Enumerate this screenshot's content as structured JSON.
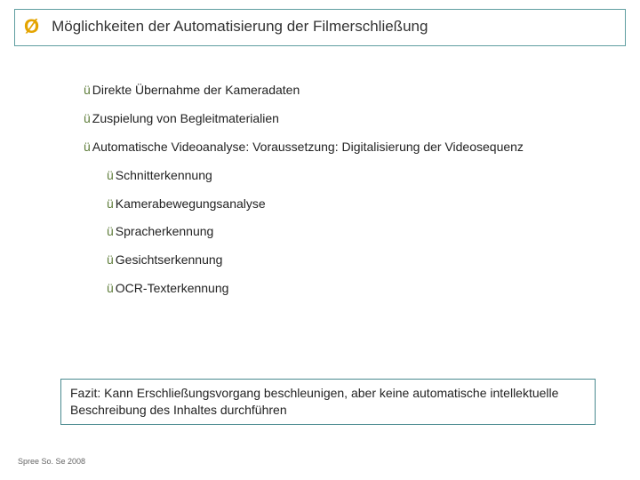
{
  "colors": {
    "border": "#5f9ea0",
    "chevron": "#e4a400",
    "check": "#5e7c3a",
    "text": "#222222",
    "footer": "#666666",
    "background": "#ffffff"
  },
  "header": {
    "title": "Möglichkeiten der Automatisierung der Filmerschließung"
  },
  "bullets_l1": [
    {
      "text": "Direkte Übernahme der Kameradaten"
    },
    {
      "text": "Zuspielung von Begleitmaterialien"
    },
    {
      "text": "Automatische Videoanalyse: Voraussetzung: Digitalisierung der Videosequenz"
    }
  ],
  "bullets_l2": [
    {
      "text": "Schnitterkennung"
    },
    {
      "text": "Kamerabewegungsanalyse"
    },
    {
      "text": "Spracherkennung"
    },
    {
      "text": "Gesichtserkennung"
    },
    {
      "text": "OCR-Texterkennung"
    }
  ],
  "fazit": "Fazit: Kann Erschließungsvorgang beschleunigen, aber keine automatische intellektuelle Beschreibung des Inhaltes durchführen",
  "footer": "Spree So. Se 2008"
}
